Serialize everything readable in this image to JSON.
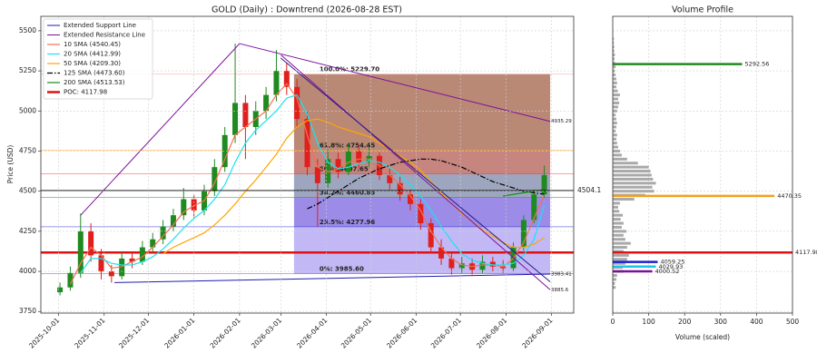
{
  "chart_data": {
    "type": "candlestick",
    "title": "GOLD (Daily) : Downtrend (2026-08-28 EST)",
    "ylabel": "Price (USD)",
    "xlim": [
      "2025-09-19",
      "2026-09-16"
    ],
    "xticks": [
      "2025-10-01",
      "2025-11-01",
      "2025-12-01",
      "2026-01-01",
      "2026-02-01",
      "2026-03-01",
      "2026-04-01",
      "2026-05-01",
      "2026-06-01",
      "2026-07-01",
      "2026-08-01",
      "2026-09-01"
    ],
    "ylim": [
      3740,
      5590
    ],
    "yticks": [
      3750,
      4000,
      4250,
      4500,
      4750,
      5000,
      5250,
      5500
    ],
    "grid": true,
    "up_color": "#1f8a1f",
    "down_color": "#e0201c",
    "x": [
      "2025-10-02",
      "2025-10-09",
      "2025-10-16",
      "2025-10-23",
      "2025-10-30",
      "2025-11-06",
      "2025-11-13",
      "2025-11-20",
      "2025-11-27",
      "2025-12-04",
      "2025-12-11",
      "2025-12-18",
      "2025-12-25",
      "2026-01-01",
      "2026-01-08",
      "2026-01-15",
      "2026-01-22",
      "2026-01-29",
      "2026-02-05",
      "2026-02-12",
      "2026-02-19",
      "2026-02-26",
      "2026-03-05",
      "2026-03-12",
      "2026-03-19",
      "2026-03-26",
      "2026-04-02",
      "2026-04-09",
      "2026-04-16",
      "2026-04-23",
      "2026-04-30",
      "2026-05-07",
      "2026-05-14",
      "2026-05-21",
      "2026-05-28",
      "2026-06-04",
      "2026-06-11",
      "2026-06-18",
      "2026-06-25",
      "2026-07-02",
      "2026-07-09",
      "2026-07-16",
      "2026-07-23",
      "2026-07-30",
      "2026-08-06",
      "2026-08-13",
      "2026-08-20",
      "2026-08-27"
    ],
    "open": [
      3870,
      3900,
      3990,
      4250,
      4100,
      4000,
      3970,
      4080,
      4060,
      4150,
      4200,
      4280,
      4350,
      4450,
      4380,
      4500,
      4650,
      4850,
      5050,
      4900,
      5000,
      5100,
      5250,
      5150,
      4950,
      4650,
      4550,
      4700,
      4620,
      4750,
      4680,
      4720,
      4600,
      4550,
      4480,
      4420,
      4300,
      4150,
      4080,
      4020,
      4050,
      4010,
      4060,
      4030,
      4020,
      4150,
      4320,
      4480
    ],
    "high": [
      3930,
      4030,
      4360,
      4300,
      4140,
      4040,
      4120,
      4110,
      4190,
      4240,
      4320,
      4390,
      4520,
      4480,
      4540,
      4700,
      4900,
      5420,
      5100,
      5060,
      5150,
      5380,
      5300,
      5200,
      5000,
      4700,
      4760,
      4740,
      4800,
      4790,
      4770,
      4740,
      4640,
      4590,
      4510,
      4450,
      4330,
      4200,
      4110,
      4090,
      4080,
      4100,
      4090,
      4070,
      4180,
      4350,
      4510,
      4660
    ],
    "low": [
      3850,
      3880,
      3960,
      4060,
      3950,
      3930,
      3950,
      4020,
      4040,
      4120,
      4170,
      4250,
      4320,
      4330,
      4350,
      4470,
      4620,
      4800,
      4700,
      4850,
      4950,
      5060,
      5100,
      4900,
      4600,
      4280,
      4520,
      4580,
      4600,
      4640,
      4650,
      4570,
      4510,
      4440,
      4380,
      4260,
      4110,
      4040,
      3980,
      3990,
      3980,
      3990,
      4000,
      3990,
      4000,
      4130,
      4300,
      4460
    ],
    "close": [
      3900,
      3990,
      4250,
      4100,
      4000,
      3970,
      4080,
      4060,
      4150,
      4200,
      4280,
      4350,
      4450,
      4380,
      4500,
      4650,
      4850,
      5050,
      4900,
      5000,
      5100,
      5250,
      5150,
      4950,
      4650,
      4550,
      4700,
      4620,
      4750,
      4680,
      4720,
      4600,
      4550,
      4480,
      4420,
      4300,
      4150,
      4080,
      4020,
      4050,
      4010,
      4060,
      4030,
      4020,
      4150,
      4320,
      4480,
      4600
    ],
    "series": [
      {
        "name": "10 SMA (4540.45)",
        "color": "#f4704f",
        "dash": "none",
        "values": [
          null,
          3920,
          4050,
          4150,
          4100,
          4020,
          4030,
          4060,
          4090,
          4150,
          4220,
          4290,
          4370,
          4410,
          4440,
          4550,
          4700,
          4850,
          4900,
          4950,
          5000,
          5100,
          5170,
          5080,
          4850,
          4650,
          4620,
          4640,
          4680,
          4700,
          4700,
          4660,
          4600,
          4540,
          4470,
          4380,
          4250,
          4150,
          4080,
          4040,
          4030,
          4040,
          4040,
          4030,
          4080,
          4180,
          4330,
          4480
        ]
      },
      {
        "name": "20 SMA (4412.99)",
        "color": "#19e3f0",
        "dash": "none",
        "values": [
          null,
          null,
          3990,
          4080,
          4080,
          4050,
          4040,
          4040,
          4060,
          4090,
          4140,
          4200,
          4270,
          4330,
          4380,
          4450,
          4540,
          4680,
          4800,
          4880,
          4940,
          5000,
          5080,
          5100,
          4980,
          4800,
          4680,
          4640,
          4650,
          4670,
          4690,
          4680,
          4650,
          4600,
          4540,
          4470,
          4380,
          4280,
          4190,
          4110,
          4070,
          4050,
          4040,
          4040,
          4050,
          4100,
          4200,
          4410
        ]
      },
      {
        "name": "50 SMA (4209.30)",
        "color": "#ffa500",
        "dash": "none",
        "values": [
          null,
          null,
          null,
          null,
          null,
          null,
          null,
          null,
          null,
          null,
          4110,
          4150,
          4180,
          4210,
          4240,
          4290,
          4350,
          4420,
          4500,
          4570,
          4650,
          4730,
          4830,
          4900,
          4940,
          4950,
          4930,
          4900,
          4880,
          4860,
          4840,
          4800,
          4760,
          4720,
          4680,
          4630,
          4560,
          4490,
          4420,
          4360,
          4310,
          4260,
          4220,
          4180,
          4150,
          4150,
          4170,
          4210
        ]
      },
      {
        "name": "125 SMA (4473.60)",
        "color": "#000000",
        "dash": "6 2 1.5 2",
        "values": [
          null,
          null,
          null,
          null,
          null,
          null,
          null,
          null,
          null,
          null,
          null,
          null,
          null,
          null,
          null,
          null,
          null,
          null,
          null,
          null,
          null,
          null,
          null,
          null,
          4390,
          4420,
          4460,
          4500,
          4540,
          4580,
          4610,
          4640,
          4660,
          4680,
          4690,
          4700,
          4700,
          4690,
          4670,
          4650,
          4620,
          4590,
          4560,
          4540,
          4520,
          4500,
          4490,
          4480
        ]
      },
      {
        "name": "200 SMA (4513.53)",
        "color": "#138a13",
        "dash": "none",
        "values": [
          null,
          null,
          null,
          null,
          null,
          null,
          null,
          null,
          null,
          null,
          null,
          null,
          null,
          null,
          null,
          null,
          null,
          null,
          null,
          null,
          null,
          null,
          null,
          null,
          null,
          null,
          null,
          null,
          null,
          null,
          null,
          null,
          null,
          null,
          null,
          null,
          null,
          null,
          null,
          null,
          null,
          null,
          null,
          4470,
          4480,
          4490,
          4500,
          4510
        ]
      }
    ],
    "trend_lines": [
      {
        "name": "Extended Support Line",
        "color": "#1c1cb0",
        "x": [
          "2025-11-08",
          "2026-08-31"
        ],
        "y": [
          3930,
          3983.41
        ]
      },
      {
        "name": "Extended Resistance Line",
        "color": "#7d0f9a",
        "x": [
          "2026-02-01",
          "2026-08-31"
        ],
        "y": [
          5420,
          4935.29
        ]
      },
      {
        "color": "#7d0f9a",
        "x": [
          "2025-10-16",
          "2026-02-01"
        ],
        "y": [
          4350,
          5420
        ]
      },
      {
        "color": "#7d0f9a",
        "x": [
          "2026-03-01",
          "2026-08-31"
        ],
        "y": [
          5350,
          3885.6
        ]
      },
      {
        "color": "#2a1a8a",
        "x": [
          "2026-03-01",
          "2026-08-31"
        ],
        "y": [
          5330,
          3935
        ]
      }
    ],
    "trend_label_lines": [
      1,
      0,
      3
    ],
    "fib_start": "2026-03-10",
    "fib_end": "2026-08-31",
    "fib_levels": [
      {
        "label": "100.0%: 5229.70",
        "value": 5229.7,
        "color": "#f3a6a6"
      },
      {
        "label": "61.8%: 4754.45",
        "value": 4754.45,
        "color": "#ff9f1a"
      },
      {
        "label": "50%: 4607.65",
        "value": 4607.65,
        "color": "#ff2a2a"
      },
      {
        "label": "38.2%: 4460.85",
        "value": 4460.85,
        "color": "#1f9a1f"
      },
      {
        "label": "23.5%: 4277.96",
        "value": 4277.96,
        "color": "#1c1ccf"
      },
      {
        "label": "0%: 3985.60",
        "value": 3985.6,
        "color": "#8a2be2"
      }
    ],
    "fib_zone_colors": [
      "#8b3a1a",
      "#a0342a",
      "#5e6a94",
      "#5a40d8",
      "#9a88f0"
    ],
    "poc": {
      "name": "POC: 4117.98",
      "value": 4117.98,
      "color": "#e01010"
    },
    "last_price": {
      "value": 4504.1,
      "color": "#000000"
    },
    "legend": "upper left",
    "volume_profile": {
      "title": "Volume Profile",
      "xlabel": "Volume (scaled)",
      "xlim": [
        0,
        500
      ],
      "xticks": [
        0,
        100,
        200,
        300,
        400,
        500
      ],
      "bar_color": "#a9a9a9",
      "prices": [
        3900,
        3925,
        3950,
        3975,
        4000,
        4025,
        4050,
        4075,
        4100,
        4125,
        4150,
        4175,
        4200,
        4225,
        4250,
        4275,
        4300,
        4325,
        4350,
        4375,
        4400,
        4425,
        4450,
        4475,
        4500,
        4525,
        4550,
        4575,
        4600,
        4625,
        4650,
        4675,
        4700,
        4725,
        4750,
        4775,
        4800,
        4825,
        4850,
        4875,
        4900,
        4925,
        4950,
        4975,
        5000,
        5025,
        5050,
        5075,
        5100,
        5125,
        5150,
        5175,
        5200,
        5225,
        5250,
        5275,
        5300,
        5325,
        5350,
        5375,
        5400,
        5425,
        5450
      ],
      "values": [
        8,
        6,
        10,
        12,
        30,
        28,
        35,
        40,
        45,
        30,
        40,
        50,
        35,
        30,
        38,
        25,
        30,
        22,
        28,
        18,
        15,
        20,
        60,
        90,
        115,
        110,
        120,
        112,
        108,
        105,
        100,
        70,
        40,
        25,
        20,
        15,
        12,
        10,
        12,
        8,
        10,
        12,
        10,
        8,
        12,
        15,
        18,
        15,
        20,
        14,
        10,
        12,
        10,
        8,
        6,
        8,
        6,
        5,
        6,
        4,
        4,
        3,
        3
      ],
      "highlights": [
        {
          "price": 5292.56,
          "value": 360,
          "color": "#1f8a1f"
        },
        {
          "price": 4470.35,
          "value": 450,
          "color": "#f0a020"
        },
        {
          "price": 4117.98,
          "value": 500,
          "color": "#e01010"
        },
        {
          "price": 4059.25,
          "value": 125,
          "color": "#1c1ccf"
        },
        {
          "price": 4029.93,
          "value": 120,
          "color": "#19c6e6"
        },
        {
          "price": 4000.52,
          "value": 110,
          "color": "#7d0f9a"
        }
      ]
    }
  }
}
